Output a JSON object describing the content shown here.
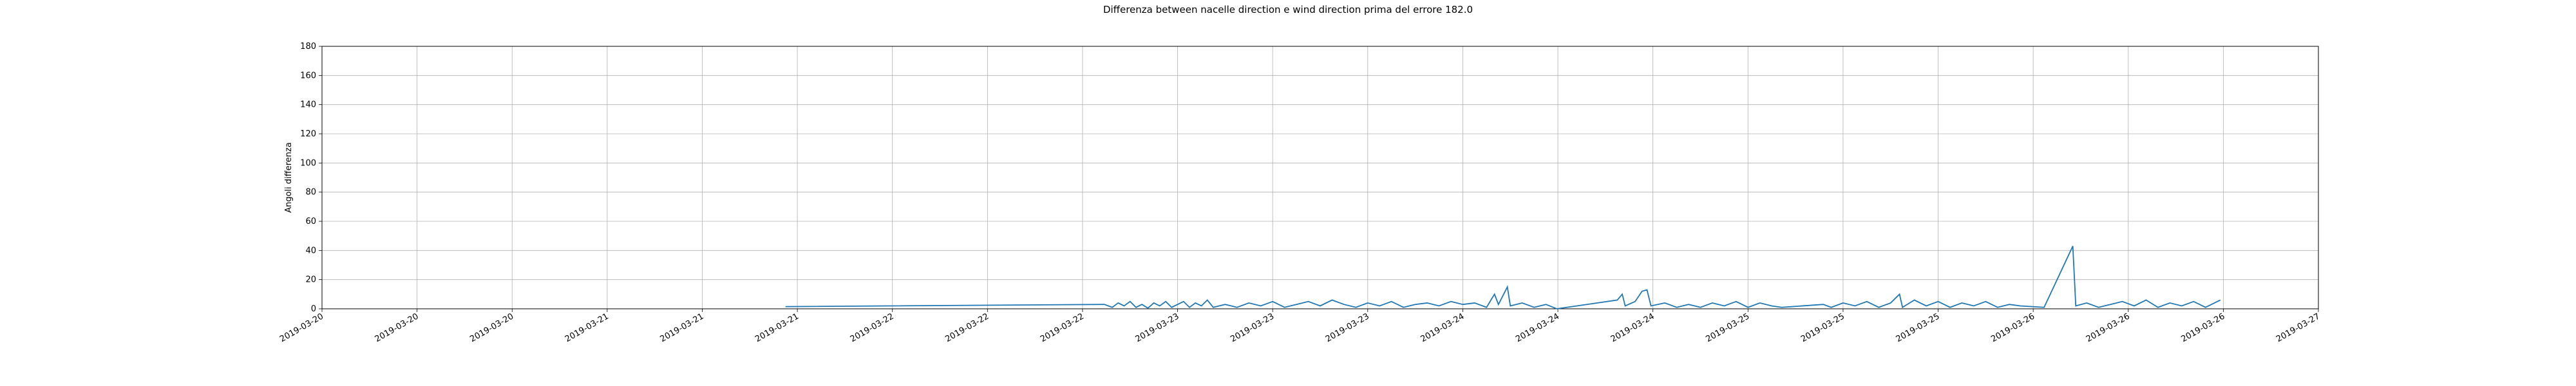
{
  "chart_data": {
    "type": "line",
    "title": "Differenza between nacelle direction e wind direction prima del errore 182.0",
    "ylabel": "Angoli differenza",
    "grid": true,
    "ylim": [
      0,
      180
    ],
    "yticks": [
      0,
      20,
      40,
      60,
      80,
      100,
      120,
      140,
      160,
      180
    ],
    "xlim": [
      "2019-03-20 00:00",
      "2019-03-27 00:00"
    ],
    "xticks": [
      {
        "value": "2019-03-20 00:00",
        "label": "2019-03-20"
      },
      {
        "value": "2019-03-20 08:00",
        "label": "2019-03-20"
      },
      {
        "value": "2019-03-20 16:00",
        "label": "2019-03-20"
      },
      {
        "value": "2019-03-21 00:00",
        "label": "2019-03-21"
      },
      {
        "value": "2019-03-21 08:00",
        "label": "2019-03-21"
      },
      {
        "value": "2019-03-21 16:00",
        "label": "2019-03-21"
      },
      {
        "value": "2019-03-22 00:00",
        "label": "2019-03-22"
      },
      {
        "value": "2019-03-22 08:00",
        "label": "2019-03-22"
      },
      {
        "value": "2019-03-22 16:00",
        "label": "2019-03-22"
      },
      {
        "value": "2019-03-23 00:00",
        "label": "2019-03-23"
      },
      {
        "value": "2019-03-23 08:00",
        "label": "2019-03-23"
      },
      {
        "value": "2019-03-23 16:00",
        "label": "2019-03-23"
      },
      {
        "value": "2019-03-24 00:00",
        "label": "2019-03-24"
      },
      {
        "value": "2019-03-24 08:00",
        "label": "2019-03-24"
      },
      {
        "value": "2019-03-24 16:00",
        "label": "2019-03-24"
      },
      {
        "value": "2019-03-25 00:00",
        "label": "2019-03-25"
      },
      {
        "value": "2019-03-25 08:00",
        "label": "2019-03-25"
      },
      {
        "value": "2019-03-25 16:00",
        "label": "2019-03-25"
      },
      {
        "value": "2019-03-26 00:00",
        "label": "2019-03-26"
      },
      {
        "value": "2019-03-26 08:00",
        "label": "2019-03-26"
      },
      {
        "value": "2019-03-26 16:00",
        "label": "2019-03-26"
      },
      {
        "value": "2019-03-27 00:00",
        "label": "2019-03-27"
      }
    ],
    "x": [
      "2019-03-21 15:00",
      "2019-03-22 17:50",
      "2019-03-22 18:30",
      "2019-03-22 19:00",
      "2019-03-22 19:30",
      "2019-03-22 20:00",
      "2019-03-22 20:30",
      "2019-03-22 21:00",
      "2019-03-22 21:30",
      "2019-03-22 22:00",
      "2019-03-22 22:30",
      "2019-03-22 23:00",
      "2019-03-22 23:30",
      "2019-03-23 00:00",
      "2019-03-23 00:30",
      "2019-03-23 01:00",
      "2019-03-23 01:30",
      "2019-03-23 02:00",
      "2019-03-23 02:30",
      "2019-03-23 03:00",
      "2019-03-23 04:00",
      "2019-03-23 05:00",
      "2019-03-23 06:00",
      "2019-03-23 07:00",
      "2019-03-23 08:00",
      "2019-03-23 09:00",
      "2019-03-23 10:00",
      "2019-03-23 11:00",
      "2019-03-23 12:00",
      "2019-03-23 13:00",
      "2019-03-23 14:00",
      "2019-03-23 15:00",
      "2019-03-23 16:00",
      "2019-03-23 17:00",
      "2019-03-23 18:00",
      "2019-03-23 19:00",
      "2019-03-23 20:00",
      "2019-03-23 21:00",
      "2019-03-23 22:00",
      "2019-03-23 23:00",
      "2019-03-24 00:00",
      "2019-03-24 01:00",
      "2019-03-24 02:00",
      "2019-03-24 02:40",
      "2019-03-24 03:00",
      "2019-03-24 03:45",
      "2019-03-24 04:00",
      "2019-03-24 05:00",
      "2019-03-24 06:00",
      "2019-03-24 07:00",
      "2019-03-24 07:55",
      "2019-03-24 13:00",
      "2019-03-24 13:25",
      "2019-03-24 13:40",
      "2019-03-24 14:30",
      "2019-03-24 15:05",
      "2019-03-24 15:30",
      "2019-03-24 15:50",
      "2019-03-24 17:00",
      "2019-03-24 18:00",
      "2019-03-24 19:00",
      "2019-03-24 20:00",
      "2019-03-24 21:00",
      "2019-03-24 22:00",
      "2019-03-24 23:00",
      "2019-03-25 00:00",
      "2019-03-25 01:00",
      "2019-03-25 02:00",
      "2019-03-25 02:50",
      "2019-03-25 06:20",
      "2019-03-25 07:00",
      "2019-03-25 08:00",
      "2019-03-25 09:00",
      "2019-03-25 10:00",
      "2019-03-25 11:00",
      "2019-03-25 12:00",
      "2019-03-25 12:45",
      "2019-03-25 13:00",
      "2019-03-25 14:00",
      "2019-03-25 15:00",
      "2019-03-25 16:00",
      "2019-03-25 17:00",
      "2019-03-25 18:00",
      "2019-03-25 19:00",
      "2019-03-25 20:00",
      "2019-03-25 21:00",
      "2019-03-25 22:00",
      "2019-03-25 22:55",
      "2019-03-26 00:55",
      "2019-03-26 03:20",
      "2019-03-26 03:35",
      "2019-03-26 04:30",
      "2019-03-26 05:30",
      "2019-03-26 06:30",
      "2019-03-26 07:30",
      "2019-03-26 08:30",
      "2019-03-26 09:30",
      "2019-03-26 10:30",
      "2019-03-26 11:30",
      "2019-03-26 12:30",
      "2019-03-26 13:30",
      "2019-03-26 14:30",
      "2019-03-26 15:00",
      "2019-03-26 15:45"
    ],
    "series": [
      {
        "color": "#1f77b4",
        "values": [
          1.5,
          3,
          1,
          4,
          2,
          5,
          1,
          3,
          0.5,
          4,
          2,
          5,
          1,
          3,
          5,
          1,
          4,
          2,
          6,
          1,
          3,
          1,
          4,
          2,
          5,
          1,
          3,
          5,
          2,
          6,
          3,
          1,
          4,
          2,
          5,
          1,
          3,
          4,
          2,
          5,
          3,
          4,
          1,
          10,
          3,
          15,
          2,
          4,
          1,
          3,
          0,
          6,
          10,
          2,
          5,
          12,
          13,
          2,
          4,
          1,
          3,
          1,
          4,
          2,
          5,
          1,
          4,
          2,
          1,
          3,
          1,
          4,
          2,
          5,
          1,
          4,
          10,
          1,
          6,
          2,
          5,
          1,
          4,
          2,
          5,
          1,
          3,
          2,
          1,
          43,
          2,
          4,
          1,
          3,
          5,
          2,
          6,
          1,
          4,
          2,
          5,
          1,
          3,
          6
        ]
      }
    ]
  }
}
